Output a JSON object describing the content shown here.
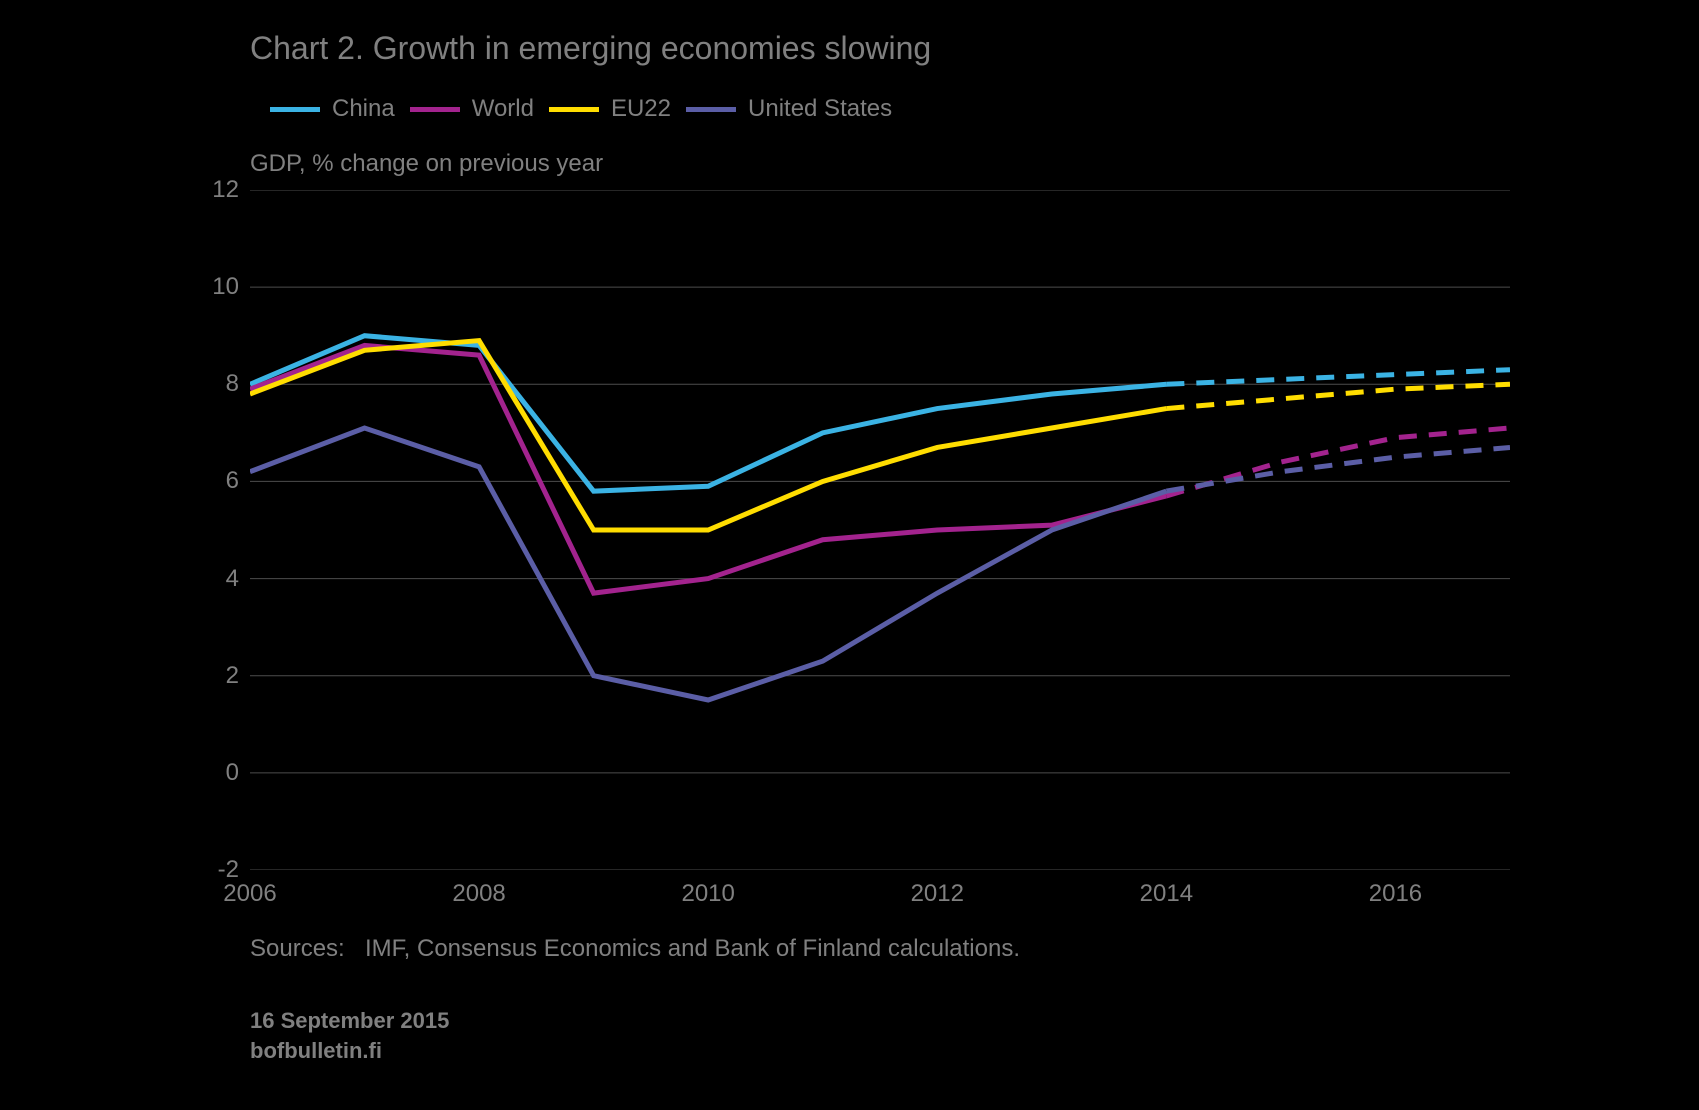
{
  "chart": {
    "type": "line",
    "title": "Chart 2. Growth in emerging economies slowing",
    "ylabel": "GDP, % change on previous year",
    "background_color": "#000000",
    "text_color": "#808080",
    "grid_color": "#4d4d4d",
    "title_fontsize": 32,
    "label_fontsize": 24,
    "tick_fontsize": 24,
    "line_width": 5,
    "ylim": [
      -2,
      12
    ],
    "ytick_step": 2,
    "yticks": [
      -2,
      0,
      2,
      4,
      6,
      8,
      10,
      12
    ],
    "xticks": [
      "2006",
      "2008",
      "2010",
      "2012",
      "2014",
      "2016"
    ],
    "x_values": [
      2006,
      2007,
      2008,
      2009,
      2010,
      2011,
      2012,
      2013,
      2014,
      2015,
      2016,
      2017
    ],
    "solid_end_index": 8,
    "series": [
      {
        "name": "China",
        "color": "#3bb3e4",
        "values": [
          8.0,
          9.0,
          8.8,
          5.8,
          5.9,
          7.0,
          7.5,
          7.8,
          8.0,
          8.1,
          8.2,
          8.3
        ]
      },
      {
        "name": "World",
        "color": "#a3238e",
        "values": [
          7.9,
          8.8,
          8.6,
          3.7,
          4.0,
          4.8,
          5.0,
          5.1,
          5.7,
          6.4,
          6.9,
          7.1
        ]
      },
      {
        "name": "EU22",
        "color": "#ffdd00",
        "values": [
          7.8,
          8.7,
          8.9,
          5.0,
          5.0,
          6.0,
          6.7,
          7.1,
          7.5,
          7.7,
          7.9,
          8.0
        ]
      },
      {
        "name": "United States",
        "color": "#5b5ea6",
        "values": [
          6.2,
          7.1,
          6.3,
          2.0,
          1.5,
          2.3,
          3.7,
          5.0,
          5.8,
          6.2,
          6.5,
          6.7
        ]
      }
    ],
    "source_label": "Sources:",
    "source_text": "IMF, Consensus Economics and Bank of Finland calculations.",
    "date_text": "16 September 2015",
    "site_text": "bofbulletin.fi"
  }
}
